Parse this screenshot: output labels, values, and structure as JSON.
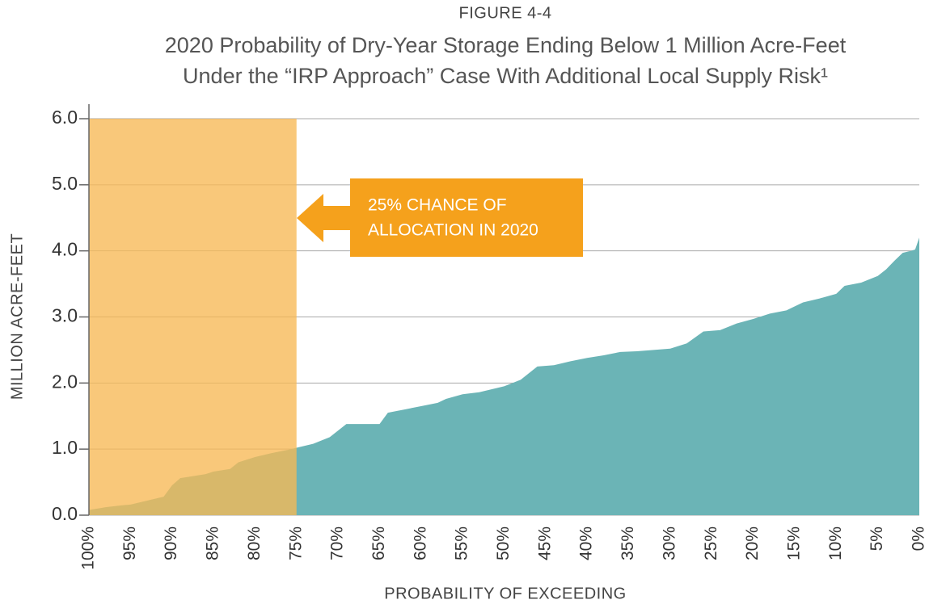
{
  "chart_data": {
    "type": "area",
    "figure_label": "FIGURE 4-4",
    "title": [
      "2020 Probability of Dry-Year Storage Ending Below 1 Million Acre-Feet",
      "Under the “IRP Approach” Case With Additional Local Supply Risk¹"
    ],
    "xlabel": "PROBABILITY OF EXCEEDING",
    "ylabel": "MILLION ACRE-FEET",
    "x": [
      100,
      98,
      96,
      95,
      93,
      91,
      90,
      89,
      87,
      86,
      85,
      83,
      82,
      80,
      78,
      76,
      75,
      73,
      71,
      69,
      67,
      65,
      64,
      62,
      60,
      58,
      57,
      55,
      53,
      50,
      48,
      46,
      44,
      42,
      40,
      38,
      36,
      34,
      32,
      30,
      28,
      26,
      24,
      22,
      20,
      18,
      16,
      14,
      12,
      10,
      9,
      7,
      5,
      4,
      3,
      2,
      1,
      0.5,
      0
    ],
    "values": [
      0.08,
      0.12,
      0.15,
      0.16,
      0.22,
      0.28,
      0.45,
      0.56,
      0.6,
      0.62,
      0.66,
      0.7,
      0.8,
      0.88,
      0.94,
      0.99,
      1.02,
      1.08,
      1.18,
      1.38,
      1.38,
      1.38,
      1.55,
      1.6,
      1.65,
      1.7,
      1.76,
      1.83,
      1.86,
      1.95,
      2.05,
      2.25,
      2.27,
      2.33,
      2.38,
      2.42,
      2.47,
      2.48,
      2.5,
      2.52,
      2.6,
      2.78,
      2.8,
      2.9,
      2.97,
      3.05,
      3.1,
      3.22,
      3.28,
      3.35,
      3.47,
      3.52,
      3.62,
      3.72,
      3.85,
      3.97,
      4.0,
      4.02,
      4.2
    ],
    "color": "#6bb4b6",
    "xlim": [
      100,
      0
    ],
    "ylim": [
      0,
      6
    ],
    "xticks": [
      {
        "value": 100,
        "label": "100%"
      },
      {
        "value": 95,
        "label": "95%"
      },
      {
        "value": 90,
        "label": "90%"
      },
      {
        "value": 85,
        "label": "85%"
      },
      {
        "value": 80,
        "label": "80%"
      },
      {
        "value": 75,
        "label": "75%"
      },
      {
        "value": 70,
        "label": "70%"
      },
      {
        "value": 65,
        "label": "65%"
      },
      {
        "value": 60,
        "label": "60%"
      },
      {
        "value": 55,
        "label": "55%"
      },
      {
        "value": 50,
        "label": "50%"
      },
      {
        "value": 45,
        "label": "45%"
      },
      {
        "value": 40,
        "label": "40%"
      },
      {
        "value": 35,
        "label": "35%"
      },
      {
        "value": 30,
        "label": "30%"
      },
      {
        "value": 25,
        "label": "25%"
      },
      {
        "value": 20,
        "label": "20%"
      },
      {
        "value": 15,
        "label": "15%"
      },
      {
        "value": 10,
        "label": "10%"
      },
      {
        "value": 5,
        "label": "5%"
      },
      {
        "value": 0,
        "label": "0%"
      }
    ],
    "yticks": [
      {
        "value": 0,
        "label": "0.0"
      },
      {
        "value": 1,
        "label": "1.0"
      },
      {
        "value": 2,
        "label": "2.0"
      },
      {
        "value": 3,
        "label": "3.0"
      },
      {
        "value": 4,
        "label": "4.0"
      },
      {
        "value": 5,
        "label": "5.0"
      },
      {
        "value": 6,
        "label": "6.0"
      }
    ],
    "grid": true,
    "highlight": {
      "x": [
        100,
        75
      ],
      "y": 6,
      "color": "#f7b955"
    },
    "annotation": {
      "lines": [
        "25% CHANCE OF",
        "ALLOCATION IN 2020"
      ],
      "color": "#f5a11c"
    }
  }
}
